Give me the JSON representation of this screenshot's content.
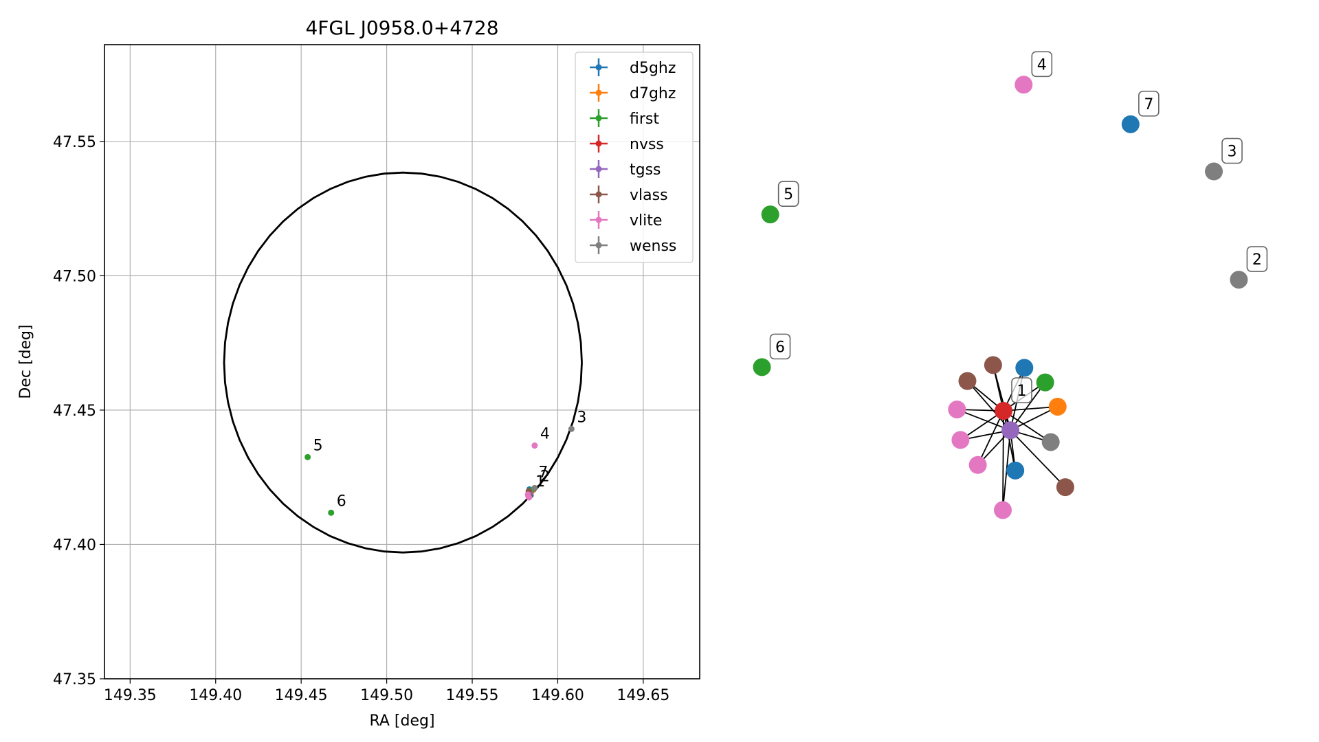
{
  "chart_data": [
    {
      "type": "scatter",
      "title": "4FGL J0958.0+4728",
      "xlabel": "RA [deg]",
      "ylabel": "Dec [deg]",
      "xlim": [
        149.335,
        149.683
      ],
      "ylim": [
        47.35,
        47.586
      ],
      "xticks": [
        {
          "v": 149.35,
          "label": "149.35"
        },
        {
          "v": 149.4,
          "label": "149.40"
        },
        {
          "v": 149.45,
          "label": "149.45"
        },
        {
          "v": 149.5,
          "label": "149.50"
        },
        {
          "v": 149.55,
          "label": "149.55"
        },
        {
          "v": 149.6,
          "label": "149.60"
        },
        {
          "v": 149.65,
          "label": "149.65"
        }
      ],
      "yticks": [
        {
          "v": 47.35,
          "label": "47.35"
        },
        {
          "v": 47.4,
          "label": "47.40"
        },
        {
          "v": 47.45,
          "label": "47.45"
        },
        {
          "v": 47.5,
          "label": "47.50"
        },
        {
          "v": 47.55,
          "label": "47.55"
        }
      ],
      "grid": true,
      "legend_position": "top-right",
      "series": [
        {
          "name": "d5ghz",
          "color": "#1f77b4",
          "points": [
            {
              "x": 149.5835,
              "y": 47.4205
            },
            {
              "x": 149.5842,
              "y": 47.4183
            }
          ]
        },
        {
          "name": "d7ghz",
          "color": "#ff7f0e",
          "points": [
            {
              "x": 149.5848,
              "y": 47.4198
            }
          ]
        },
        {
          "name": "first",
          "color": "#2ca02c",
          "points": [
            {
              "x": 149.4538,
              "y": 47.4325,
              "label": "5"
            },
            {
              "x": 149.4675,
              "y": 47.4118,
              "label": "6"
            },
            {
              "x": 149.5845,
              "y": 47.4202
            }
          ]
        },
        {
          "name": "nvss",
          "color": "#d62728",
          "points": [
            {
              "x": 149.5833,
              "y": 47.4195
            }
          ]
        },
        {
          "name": "tgss",
          "color": "#9467bd",
          "points": [
            {
              "x": 149.5838,
              "y": 47.419,
              "label": "1"
            }
          ]
        },
        {
          "name": "vlass",
          "color": "#8c564b",
          "points": [
            {
              "x": 149.583,
              "y": 47.4198
            },
            {
              "x": 149.5836,
              "y": 47.418
            }
          ]
        },
        {
          "name": "vlite",
          "color": "#e377c2",
          "points": [
            {
              "x": 149.5865,
              "y": 47.4368,
              "label": "4"
            },
            {
              "x": 149.5828,
              "y": 47.418
            },
            {
              "x": 149.5832,
              "y": 47.4175
            },
            {
              "x": 149.5826,
              "y": 47.4186
            }
          ]
        },
        {
          "name": "wenss",
          "color": "#7f7f7f",
          "points": [
            {
              "x": 149.608,
              "y": 47.443,
              "label": "3"
            },
            {
              "x": 149.5865,
              "y": 47.421,
              "label": "2"
            }
          ]
        }
      ],
      "extra_labels": [
        {
          "x": 149.5855,
          "y": 47.4225,
          "label": "7"
        }
      ],
      "circle": {
        "center": [
          149.5095,
          47.4677
        ],
        "radius_deg": 0.0707,
        "color": "#000000"
      }
    },
    {
      "type": "network",
      "nodes": [
        {
          "id": "n1",
          "series": "nvss",
          "color": "#d62728",
          "x": 0.0,
          "y": 0.0,
          "label": "1"
        },
        {
          "id": "n1b",
          "series": "tgss",
          "color": "#9467bd",
          "x": 0.1,
          "y": -0.28
        },
        {
          "id": "d5a",
          "series": "d5ghz",
          "color": "#1f77b4",
          "x": 0.3,
          "y": 0.62
        },
        {
          "id": "fa",
          "series": "first",
          "color": "#2ca02c",
          "x": 0.6,
          "y": 0.41
        },
        {
          "id": "d7",
          "series": "d7ghz",
          "color": "#ff7f0e",
          "x": 0.78,
          "y": 0.06
        },
        {
          "id": "wa",
          "series": "wenss",
          "color": "#7f7f7f",
          "x": 0.68,
          "y": -0.45
        },
        {
          "id": "vla",
          "series": "vlass",
          "color": "#8c564b",
          "x": 0.89,
          "y": -1.1
        },
        {
          "id": "d5b",
          "series": "d5ghz",
          "color": "#1f77b4",
          "x": 0.17,
          "y": -0.86
        },
        {
          "id": "vlb",
          "series": "vlass",
          "color": "#8c564b",
          "x": -0.15,
          "y": 0.66
        },
        {
          "id": "vlc",
          "series": "vlass",
          "color": "#8c564b",
          "x": -0.52,
          "y": 0.43
        },
        {
          "id": "va",
          "series": "vlite",
          "color": "#e377c2",
          "x": -0.67,
          "y": 0.02
        },
        {
          "id": "vb",
          "series": "vlite",
          "color": "#e377c2",
          "x": -0.62,
          "y": -0.42
        },
        {
          "id": "vc",
          "series": "vlite",
          "color": "#e377c2",
          "x": -0.37,
          "y": -0.78
        },
        {
          "id": "vd",
          "series": "vlite",
          "color": "#e377c2",
          "x": -0.01,
          "y": -1.43
        },
        {
          "id": "iso4",
          "series": "vlite",
          "color": "#e377c2",
          "x": 0.29,
          "y": 4.7,
          "label": "4"
        },
        {
          "id": "iso7",
          "series": "d5ghz",
          "color": "#1f77b4",
          "x": 1.83,
          "y": 4.13,
          "label": "7"
        },
        {
          "id": "iso3",
          "series": "wenss",
          "color": "#7f7f7f",
          "x": 3.03,
          "y": 3.45,
          "label": "3"
        },
        {
          "id": "iso5",
          "series": "first",
          "color": "#2ca02c",
          "x": -3.36,
          "y": 2.83,
          "label": "5"
        },
        {
          "id": "iso2",
          "series": "wenss",
          "color": "#7f7f7f",
          "x": 3.39,
          "y": 1.89,
          "label": "2"
        },
        {
          "id": "iso6",
          "series": "first",
          "color": "#2ca02c",
          "x": -3.48,
          "y": 0.63,
          "label": "6"
        }
      ],
      "edges": [
        [
          "n1",
          "n1b"
        ],
        [
          "n1",
          "d5a"
        ],
        [
          "n1",
          "fa"
        ],
        [
          "n1",
          "d7"
        ],
        [
          "n1",
          "wa"
        ],
        [
          "n1",
          "d5b"
        ],
        [
          "n1",
          "vlb"
        ],
        [
          "n1",
          "vlc"
        ],
        [
          "n1",
          "va"
        ],
        [
          "n1",
          "vb"
        ],
        [
          "n1",
          "vc"
        ],
        [
          "n1",
          "vd"
        ],
        [
          "n1b",
          "d5a"
        ],
        [
          "n1b",
          "fa"
        ],
        [
          "n1b",
          "d7"
        ],
        [
          "n1b",
          "wa"
        ],
        [
          "n1b",
          "vla"
        ],
        [
          "n1b",
          "d5b"
        ],
        [
          "n1b",
          "vlb"
        ],
        [
          "n1b",
          "vlc"
        ],
        [
          "n1b",
          "va"
        ],
        [
          "n1b",
          "vb"
        ],
        [
          "n1b",
          "vc"
        ],
        [
          "n1b",
          "vd"
        ]
      ]
    }
  ]
}
